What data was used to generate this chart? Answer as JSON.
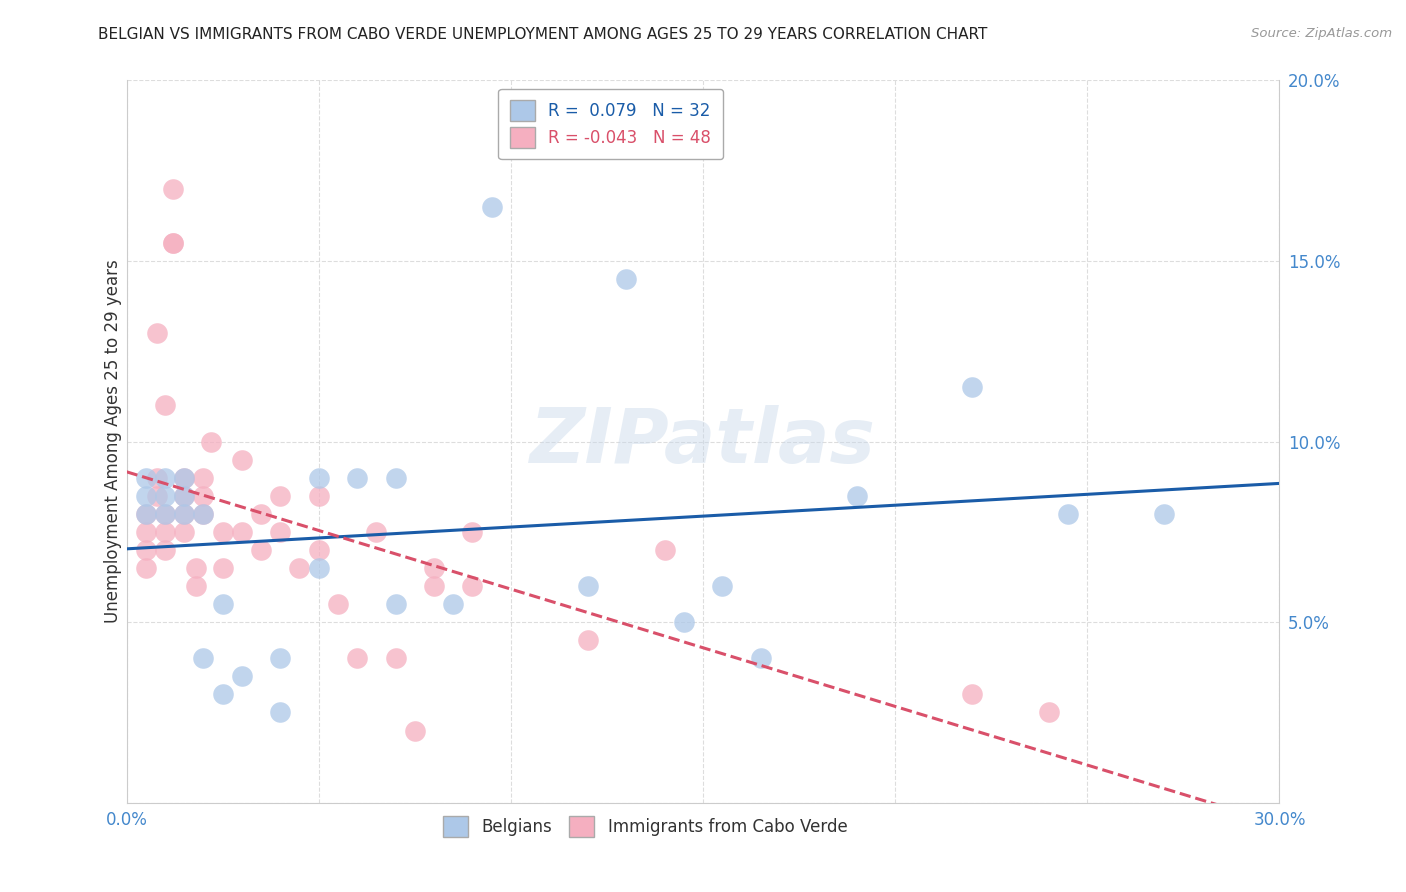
{
  "title": "BELGIAN VS IMMIGRANTS FROM CABO VERDE UNEMPLOYMENT AMONG AGES 25 TO 29 YEARS CORRELATION CHART",
  "source": "Source: ZipAtlas.com",
  "ylabel": "Unemployment Among Ages 25 to 29 years",
  "xlim": [
    0.0,
    0.3
  ],
  "ylim": [
    0.0,
    0.2
  ],
  "xticks": [
    0.0,
    0.05,
    0.1,
    0.15,
    0.2,
    0.25,
    0.3
  ],
  "yticks": [
    0.0,
    0.05,
    0.1,
    0.15,
    0.2
  ],
  "belgians_R": 0.079,
  "belgians_N": 32,
  "cabo_verde_R": -0.043,
  "cabo_verde_N": 48,
  "belgians_color": "#adc8e8",
  "cabo_verde_color": "#f5afc0",
  "belgians_line_color": "#1a5ca8",
  "cabo_verde_line_color": "#d9506a",
  "watermark": "ZIPatlas",
  "belgians_x": [
    0.005,
    0.005,
    0.005,
    0.01,
    0.01,
    0.01,
    0.015,
    0.015,
    0.015,
    0.02,
    0.02,
    0.025,
    0.025,
    0.03,
    0.04,
    0.04,
    0.05,
    0.05,
    0.06,
    0.07,
    0.07,
    0.085,
    0.095,
    0.12,
    0.13,
    0.145,
    0.155,
    0.165,
    0.19,
    0.22,
    0.245,
    0.27
  ],
  "belgians_y": [
    0.08,
    0.085,
    0.09,
    0.08,
    0.085,
    0.09,
    0.08,
    0.085,
    0.09,
    0.08,
    0.04,
    0.055,
    0.03,
    0.035,
    0.04,
    0.025,
    0.09,
    0.065,
    0.09,
    0.09,
    0.055,
    0.055,
    0.165,
    0.06,
    0.145,
    0.05,
    0.06,
    0.04,
    0.085,
    0.115,
    0.08,
    0.08
  ],
  "cabo_verde_x": [
    0.005,
    0.005,
    0.005,
    0.005,
    0.008,
    0.008,
    0.008,
    0.01,
    0.01,
    0.01,
    0.01,
    0.012,
    0.012,
    0.012,
    0.015,
    0.015,
    0.015,
    0.015,
    0.018,
    0.018,
    0.02,
    0.02,
    0.02,
    0.022,
    0.025,
    0.025,
    0.03,
    0.03,
    0.035,
    0.035,
    0.04,
    0.04,
    0.045,
    0.05,
    0.05,
    0.055,
    0.06,
    0.065,
    0.07,
    0.075,
    0.08,
    0.08,
    0.09,
    0.09,
    0.12,
    0.14,
    0.22,
    0.24
  ],
  "cabo_verde_y": [
    0.08,
    0.075,
    0.07,
    0.065,
    0.13,
    0.09,
    0.085,
    0.11,
    0.08,
    0.075,
    0.07,
    0.17,
    0.155,
    0.155,
    0.09,
    0.085,
    0.08,
    0.075,
    0.065,
    0.06,
    0.09,
    0.085,
    0.08,
    0.1,
    0.075,
    0.065,
    0.095,
    0.075,
    0.08,
    0.07,
    0.085,
    0.075,
    0.065,
    0.085,
    0.07,
    0.055,
    0.04,
    0.075,
    0.04,
    0.02,
    0.065,
    0.06,
    0.075,
    0.06,
    0.045,
    0.07,
    0.03,
    0.025
  ],
  "background_color": "#ffffff",
  "grid_color": "#dddddd",
  "title_color": "#222222",
  "axis_label_color": "#333333",
  "tick_color": "#4488cc",
  "source_color": "#999999"
}
